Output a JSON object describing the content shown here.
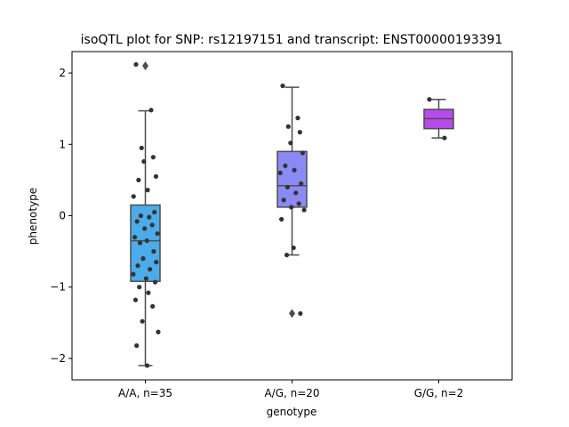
{
  "chart_data": {
    "type": "box",
    "title": "isoQTL plot for SNP: rs12197151 and transcript: ENST00000193391",
    "xlabel": "genotype",
    "ylabel": "phenotype",
    "categories": [
      "A/A, n=35",
      "A/G, n=20",
      "G/G, n=2"
    ],
    "ylim": [
      -2.3,
      2.3
    ],
    "yticks": [
      -2,
      -1,
      0,
      1,
      2
    ],
    "ytick_labels": [
      "−2",
      "−1",
      "0",
      "1",
      "2"
    ],
    "grid": false,
    "series": [
      {
        "category": "A/A, n=35",
        "color": "#4bace9",
        "box": {
          "whisker_low": -2.1,
          "q1": -0.92,
          "median": -0.35,
          "q3": 0.15,
          "whisker_high": 1.47
        },
        "outliers": [
          2.1
        ],
        "points": [
          2.12,
          1.48,
          0.95,
          0.82,
          0.76,
          0.55,
          0.5,
          0.36,
          0.27,
          0.05,
          0.0,
          -0.02,
          -0.08,
          -0.13,
          -0.18,
          -0.25,
          -0.3,
          -0.35,
          -0.38,
          -0.5,
          -0.6,
          -0.65,
          -0.7,
          -0.75,
          -0.82,
          -0.88,
          -0.93,
          -1.0,
          -1.08,
          -1.18,
          -1.27,
          -1.48,
          -1.63,
          -1.82,
          -2.1
        ]
      },
      {
        "category": "A/G, n=20",
        "color": "#8b8af4",
        "box": {
          "whisker_low": -0.55,
          "q1": 0.12,
          "median": 0.42,
          "q3": 0.9,
          "whisker_high": 1.8
        },
        "outliers": [
          -1.37
        ],
        "points": [
          1.82,
          1.37,
          1.25,
          1.17,
          1.02,
          0.88,
          0.7,
          0.64,
          0.6,
          0.45,
          0.4,
          0.32,
          0.22,
          0.17,
          0.12,
          0.08,
          -0.05,
          -0.45,
          -0.55,
          -1.37
        ]
      },
      {
        "category": "G/G, n=2",
        "color": "#b84bec",
        "box": {
          "whisker_low": 1.09,
          "q1": 1.22,
          "median": 1.36,
          "q3": 1.49,
          "whisker_high": 1.63
        },
        "outliers": [],
        "points": [
          1.63,
          1.09
        ]
      }
    ]
  }
}
